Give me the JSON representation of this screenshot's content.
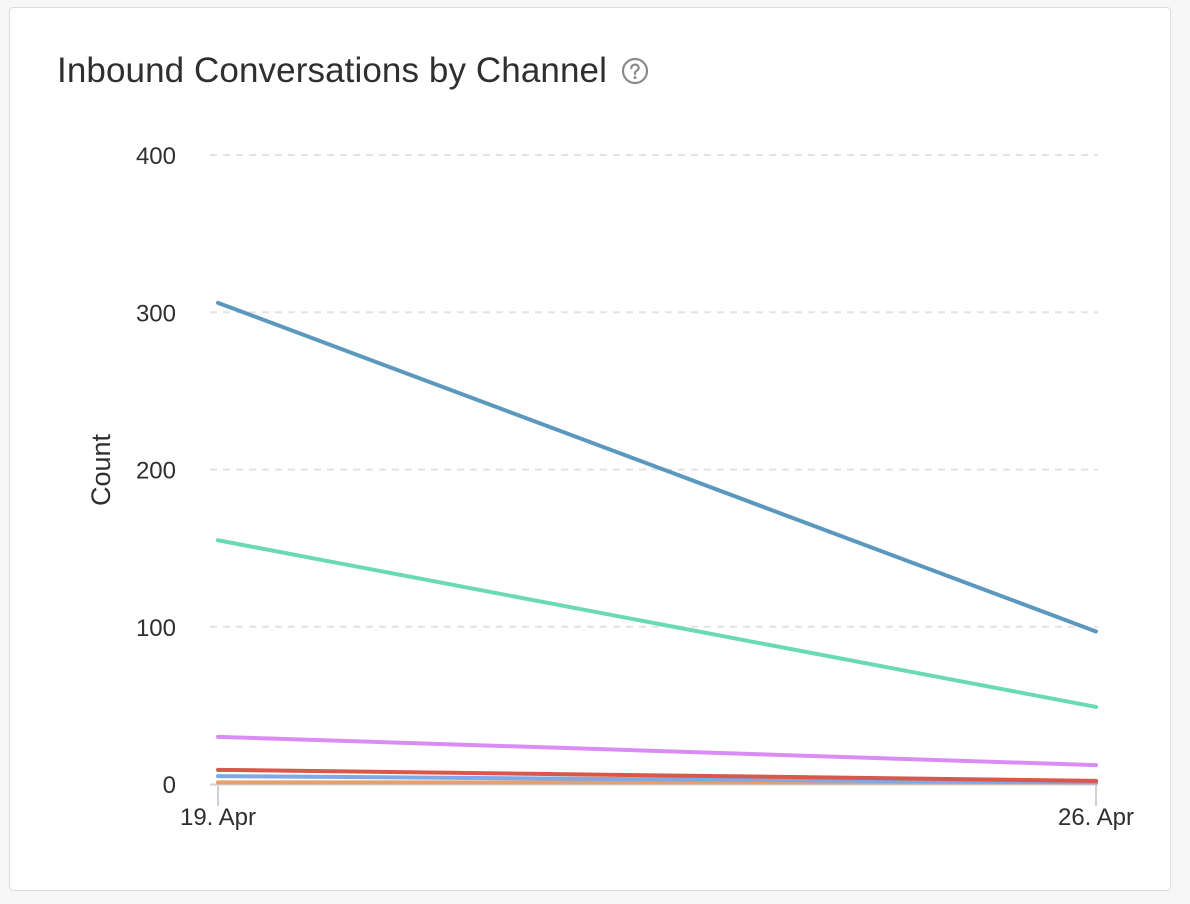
{
  "card": {
    "title": "Inbound Conversations by Channel"
  },
  "icons": {
    "help": "help-circle-icon"
  },
  "chart_data": {
    "type": "line",
    "title": "Inbound Conversations by Channel",
    "xlabel": "",
    "ylabel": "Count",
    "x": [
      "19. Apr",
      "26. Apr"
    ],
    "ylim": [
      0,
      400
    ],
    "yticks": [
      0,
      100,
      200,
      300,
      400
    ],
    "grid": true,
    "series": [
      {
        "color": "#5b98bd",
        "values": [
          306,
          97
        ]
      },
      {
        "color": "#6ad9b5",
        "values": [
          155,
          49
        ]
      },
      {
        "color": "#d98cf5",
        "values": [
          30,
          12
        ]
      },
      {
        "color": "#d9584a",
        "values": [
          9,
          2
        ]
      },
      {
        "color": "#7fa8e6",
        "values": [
          5,
          1
        ]
      },
      {
        "color": "#e8a06b",
        "values": [
          1,
          1
        ]
      }
    ]
  }
}
